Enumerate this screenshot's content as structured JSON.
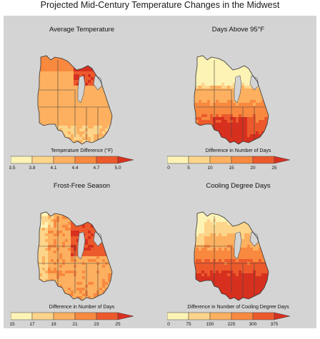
{
  "title": "Projected Mid-Century Temperature Changes in the Midwest",
  "panels": [
    {
      "title": "Average Temperature",
      "legend_label": "Temperature Difference (°F)",
      "ticks": [
        "3.5",
        "3.8",
        "4.1",
        "4.4",
        "4.7",
        "5.0"
      ],
      "colors": [
        "#fdf3b5",
        "#fdd58a",
        "#fdb05f",
        "#f8893f",
        "#ec5a2c",
        "#d7301f"
      ],
      "pattern": "avg"
    },
    {
      "title": "Days Above 95°F",
      "legend_label": "Difference in Number of Days",
      "ticks": [
        "0",
        "5",
        "10",
        "15",
        "20",
        "25"
      ],
      "colors": [
        "#fdf3b5",
        "#fdd58a",
        "#fdb05f",
        "#f8893f",
        "#ec5a2c",
        "#d7301f"
      ],
      "pattern": "hot"
    },
    {
      "title": "Frost-Free Season",
      "legend_label": "Difference in Number of Days",
      "ticks": [
        "15",
        "17",
        "19",
        "21",
        "23",
        "25"
      ],
      "colors": [
        "#fdf3b5",
        "#fdd58a",
        "#fdb05f",
        "#f8893f",
        "#ec5a2c",
        "#d7301f"
      ],
      "pattern": "frost"
    },
    {
      "title": "Cooling Degree Days",
      "legend_label": "Difference in Number of Cooling Degree Days",
      "ticks": [
        "0",
        "75",
        "150",
        "225",
        "300",
        "375"
      ],
      "colors": [
        "#fdf3b5",
        "#fdd58a",
        "#fdb05f",
        "#f8893f",
        "#ec5a2c",
        "#d7301f"
      ],
      "pattern": "cool"
    }
  ]
}
